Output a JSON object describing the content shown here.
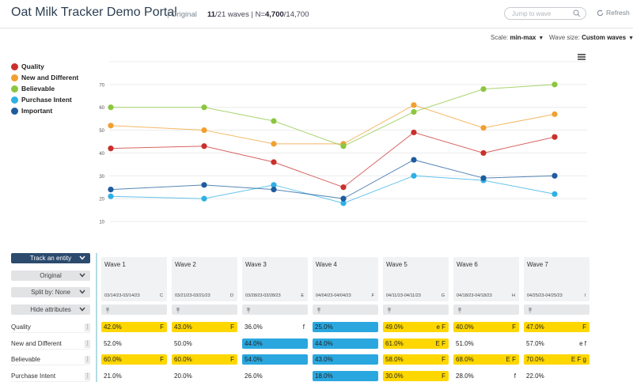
{
  "header": {
    "title": "Oat Milk Tracker Demo Portal",
    "variant": "| Original",
    "wave_current": "11",
    "wave_total": "/21",
    "waves_word": "waves",
    "sep": "| N=",
    "n_value": "4,700",
    "n_total": "/14,700",
    "jump_placeholder": "Jump to wave",
    "refresh_label": "Refresh"
  },
  "controls": {
    "scale_label": "Scale:",
    "scale_value": "min-max",
    "wavesize_label": "Wave size:",
    "wavesize_value": "Custom waves"
  },
  "colors": {
    "quality": "#c9302c",
    "new_and_different": "#f0a030",
    "believable": "#8cc63f",
    "purchase_intent": "#2fb0e4",
    "important": "#1f5c9e",
    "yellow": "#ffd700",
    "blue": "#2aa7df"
  },
  "legend": [
    {
      "label": "Quality",
      "color": "#c9302c"
    },
    {
      "label": "New and Different",
      "color": "#f0a030"
    },
    {
      "label": "Believable",
      "color": "#8cc63f"
    },
    {
      "label": "Purchase Intent",
      "color": "#2fb0e4"
    },
    {
      "label": "Important",
      "color": "#1f5c9e"
    }
  ],
  "chart_data": {
    "type": "line",
    "x": [
      1,
      2,
      3,
      4,
      5,
      6,
      7
    ],
    "yticks": [
      10,
      20,
      30,
      40,
      50,
      60,
      70
    ],
    "ylim": [
      10,
      80
    ],
    "grid": true,
    "legend_position": "left",
    "series": [
      {
        "name": "Quality",
        "color": "#c9302c",
        "values": [
          42,
          43,
          36,
          25,
          49,
          40,
          47
        ]
      },
      {
        "name": "New and Different",
        "color": "#f0a030",
        "values": [
          52,
          50,
          44,
          44,
          61,
          51,
          57
        ]
      },
      {
        "name": "Believable",
        "color": "#8cc63f",
        "values": [
          60,
          60,
          54,
          43,
          58,
          68,
          70
        ]
      },
      {
        "name": "Purchase Intent",
        "color": "#2fb0e4",
        "values": [
          21,
          20,
          26,
          18,
          30,
          28,
          22
        ]
      },
      {
        "name": "Important",
        "color": "#1f5c9e",
        "values": [
          24,
          26,
          24,
          20,
          37,
          29,
          30
        ]
      }
    ]
  },
  "left_panel": {
    "track_label": "Track an entity",
    "original_label": "Original",
    "split_label": "Split by: None",
    "hide_label": "Hide attributes"
  },
  "rows": [
    "Quality",
    "New and Different",
    "Believable",
    "Purchase Intent"
  ],
  "waves": [
    {
      "name": "Wave 1",
      "date": "03/14/23-03/14/23",
      "letter": "C"
    },
    {
      "name": "Wave 2",
      "date": "03/21/23-03/21/23",
      "letter": "D"
    },
    {
      "name": "Wave 3",
      "date": "03/28/23-03/28/23",
      "letter": "E"
    },
    {
      "name": "Wave 4",
      "date": "04/04/23-04/04/23",
      "letter": "F"
    },
    {
      "name": "Wave 5",
      "date": "04/11/23-04/11/23",
      "letter": "G"
    },
    {
      "name": "Wave 6",
      "date": "04/18/23-04/18/23",
      "letter": "H"
    },
    {
      "name": "Wave 7",
      "date": "04/25/23-04/25/23",
      "letter": "I"
    }
  ],
  "cells": [
    [
      {
        "v": "42.0%",
        "s": "F",
        "bg": "yellow"
      },
      {
        "v": "43.0%",
        "s": "F",
        "bg": "yellow"
      },
      {
        "v": "36.0%",
        "s": "f",
        "bg": ""
      },
      {
        "v": "25.0%",
        "s": "",
        "bg": "blue"
      },
      {
        "v": "49.0%",
        "s": "e F",
        "bg": "yellow"
      },
      {
        "v": "40.0%",
        "s": "F",
        "bg": "yellow"
      },
      {
        "v": "47.0%",
        "s": "F",
        "bg": "yellow"
      }
    ],
    [
      {
        "v": "52.0%",
        "s": "",
        "bg": ""
      },
      {
        "v": "50.0%",
        "s": "",
        "bg": ""
      },
      {
        "v": "44.0%",
        "s": "",
        "bg": "blue"
      },
      {
        "v": "44.0%",
        "s": "",
        "bg": "blue"
      },
      {
        "v": "61.0%",
        "s": "E F",
        "bg": "yellow"
      },
      {
        "v": "51.0%",
        "s": "",
        "bg": ""
      },
      {
        "v": "57.0%",
        "s": "e f",
        "bg": ""
      }
    ],
    [
      {
        "v": "60.0%",
        "s": "F",
        "bg": "yellow"
      },
      {
        "v": "60.0%",
        "s": "F",
        "bg": "yellow"
      },
      {
        "v": "54.0%",
        "s": "",
        "bg": "blue"
      },
      {
        "v": "43.0%",
        "s": "",
        "bg": "blue"
      },
      {
        "v": "58.0%",
        "s": "F",
        "bg": "yellow"
      },
      {
        "v": "68.0%",
        "s": "E F",
        "bg": "yellow"
      },
      {
        "v": "70.0%",
        "s": "E F g",
        "bg": "yellow"
      }
    ],
    [
      {
        "v": "21.0%",
        "s": "",
        "bg": ""
      },
      {
        "v": "20.0%",
        "s": "",
        "bg": ""
      },
      {
        "v": "26.0%",
        "s": "",
        "bg": ""
      },
      {
        "v": "18.0%",
        "s": "",
        "bg": "blue"
      },
      {
        "v": "30.0%",
        "s": "F",
        "bg": "yellow"
      },
      {
        "v": "28.0%",
        "s": "f",
        "bg": ""
      },
      {
        "v": "22.0%",
        "s": "",
        "bg": ""
      }
    ]
  ]
}
